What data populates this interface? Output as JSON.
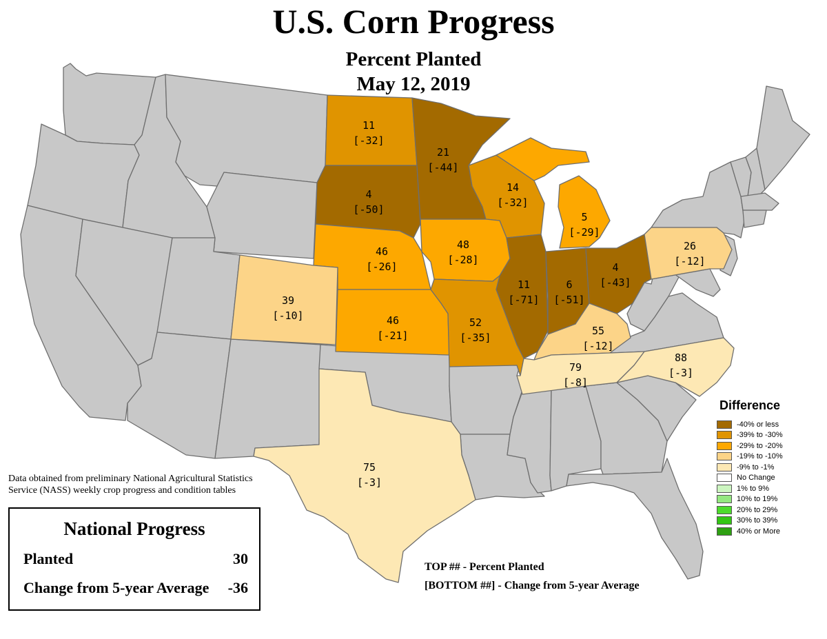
{
  "title": "U.S. Corn Progress",
  "subtitle": "Percent Planted",
  "date": "May 12, 2019",
  "source_note": "Data obtained from preliminary National Agricultural Statistics Service (NASS) weekly crop progress and condition tables",
  "national": {
    "heading": "National Progress",
    "planted_label": "Planted",
    "planted_value": "30",
    "change_label": "Change from 5-year Average",
    "change_value": "-36"
  },
  "key": {
    "top": "TOP ## - Percent Planted",
    "bottom": "[BOTTOM ##] - Change from 5-year Average"
  },
  "legend": {
    "title": "Difference",
    "items": [
      {
        "label": "-40% or less",
        "color": "#A36A00"
      },
      {
        "label": "-39% to -30%",
        "color": "#E09400"
      },
      {
        "label": "-29% to -20%",
        "color": "#FDA800"
      },
      {
        "label": "-19% to -10%",
        "color": "#FCD488"
      },
      {
        "label": "-9% to -1%",
        "color": "#FDE8B4"
      },
      {
        "label": "No Change",
        "color": "#FFFFFF"
      },
      {
        "label": "1% to 9%",
        "color": "#CCF5C0"
      },
      {
        "label": "10% to 19%",
        "color": "#94E880"
      },
      {
        "label": "20% to 29%",
        "color": "#4CDB2C"
      },
      {
        "label": "30% to 39%",
        "color": "#33C614"
      },
      {
        "label": "40% or More",
        "color": "#2EA012"
      }
    ]
  },
  "colors": {
    "no_data": "#C8C8C8",
    "border": "#6E6E6E",
    "water": "#FFFFFF"
  },
  "states": [
    {
      "name": "North Dakota",
      "planted": "11",
      "change": "[-32]",
      "fill": "#E09400"
    },
    {
      "name": "South Dakota",
      "planted": "4",
      "change": "[-50]",
      "fill": "#A36A00"
    },
    {
      "name": "Minnesota",
      "planted": "21",
      "change": "[-44]",
      "fill": "#A36A00"
    },
    {
      "name": "Wisconsin",
      "planted": "14",
      "change": "[-32]",
      "fill": "#E09400"
    },
    {
      "name": "Michigan",
      "planted": "5",
      "change": "[-29]",
      "fill": "#FDA800"
    },
    {
      "name": "Nebraska",
      "planted": "46",
      "change": "[-26]",
      "fill": "#FDA800"
    },
    {
      "name": "Iowa",
      "planted": "48",
      "change": "[-28]",
      "fill": "#FDA800"
    },
    {
      "name": "Illinois",
      "planted": "11",
      "change": "[-71]",
      "fill": "#A36A00"
    },
    {
      "name": "Indiana",
      "planted": "6",
      "change": "[-51]",
      "fill": "#A36A00"
    },
    {
      "name": "Ohio",
      "planted": "4",
      "change": "[-43]",
      "fill": "#A36A00"
    },
    {
      "name": "Pennsylvania",
      "planted": "26",
      "change": "[-12]",
      "fill": "#FCD488"
    },
    {
      "name": "Colorado",
      "planted": "39",
      "change": "[-10]",
      "fill": "#FCD488"
    },
    {
      "name": "Kansas",
      "planted": "46",
      "change": "[-21]",
      "fill": "#FDA800"
    },
    {
      "name": "Missouri",
      "planted": "52",
      "change": "[-35]",
      "fill": "#E09400"
    },
    {
      "name": "Kentucky",
      "planted": "55",
      "change": "[-12]",
      "fill": "#FCD488"
    },
    {
      "name": "Tennessee",
      "planted": "79",
      "change": "[-8]",
      "fill": "#FDE8B4"
    },
    {
      "name": "North Carolina",
      "planted": "88",
      "change": "[-3]",
      "fill": "#FDE8B4"
    },
    {
      "name": "Texas",
      "planted": "75",
      "change": "[-3]",
      "fill": "#FDE8B4"
    }
  ]
}
